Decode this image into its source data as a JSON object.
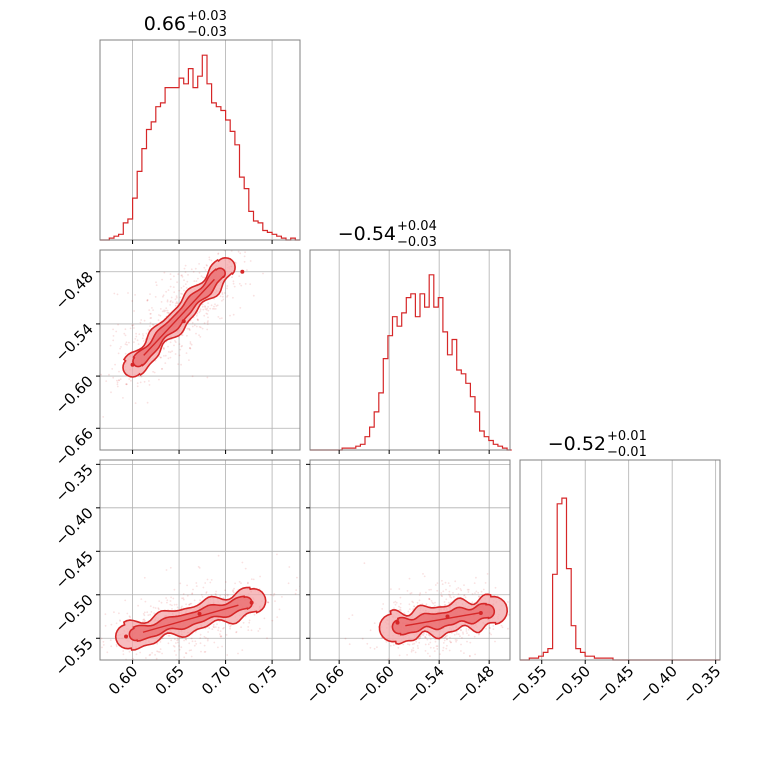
{
  "colors": {
    "series": "#d62728",
    "fill": "#f4a6a8",
    "grid": "#b0b0b0",
    "frame": "#808080"
  },
  "chart_data": [
    {
      "type": "histogram",
      "panel": "p00",
      "title": {
        "main": "0.66",
        "sup": "+0.03",
        "sub": "−0.03"
      },
      "xlim": [
        0.565,
        0.78
      ],
      "ylim": [
        0,
        1.05
      ],
      "x_gridlines": [
        0.6,
        0.65,
        0.7,
        0.75
      ],
      "bins": {
        "x0": 0.565,
        "dx": 0.005,
        "values": [
          0.0,
          0.0,
          0.01,
          0.02,
          0.03,
          0.09,
          0.11,
          0.22,
          0.36,
          0.48,
          0.58,
          0.62,
          0.7,
          0.72,
          0.8,
          0.8,
          0.8,
          0.85,
          0.82,
          0.9,
          0.8,
          0.86,
          0.97,
          0.82,
          0.72,
          0.7,
          0.68,
          0.63,
          0.57,
          0.5,
          0.33,
          0.27,
          0.15,
          0.1,
          0.09,
          0.05,
          0.04,
          0.03,
          0.02,
          0.01,
          0.0,
          0.01,
          0.0
        ]
      }
    },
    {
      "type": "scatter",
      "panel": "p10",
      "xlim": [
        0.565,
        0.78
      ],
      "ylim": [
        -0.685,
        -0.455
      ],
      "x_gridlines": [
        0.6,
        0.65,
        0.7,
        0.75
      ],
      "yticks": [
        -0.48,
        -0.54,
        -0.6,
        -0.66
      ],
      "ytick_labels": [
        "−0.48",
        "−0.54",
        "−0.60",
        "−0.66"
      ],
      "density": {
        "axis": [
          [
            0.6,
            -0.59
          ],
          [
            0.7,
            -0.475
          ]
        ],
        "width_outer": 0.011,
        "width_inner": 0.006,
        "scatter_n": 700
      },
      "markers": [
        [
          0.6,
          -0.587
        ],
        [
          0.718,
          -0.48
        ],
        [
          0.655,
          -0.537
        ]
      ]
    },
    {
      "type": "histogram",
      "panel": "p11",
      "title": {
        "main": "−0.54",
        "sup": "+0.04",
        "sub": "−0.03"
      },
      "xlim": [
        -0.695,
        -0.455
      ],
      "ylim": [
        0,
        1.05
      ],
      "x_gridlines": [
        -0.66,
        -0.6,
        -0.54,
        -0.48
      ],
      "bins": {
        "x0": -0.695,
        "dx": 0.0055,
        "values": [
          0.0,
          0.0,
          0.0,
          0.0,
          0.0,
          0.0,
          0.0,
          0.01,
          0.01,
          0.01,
          0.02,
          0.03,
          0.07,
          0.12,
          0.2,
          0.3,
          0.48,
          0.6,
          0.7,
          0.65,
          0.72,
          0.8,
          0.82,
          0.7,
          0.82,
          0.75,
          0.92,
          0.75,
          0.8,
          0.62,
          0.5,
          0.58,
          0.42,
          0.4,
          0.35,
          0.28,
          0.2,
          0.1,
          0.07,
          0.05,
          0.03,
          0.02,
          0.01,
          0.0
        ]
      }
    },
    {
      "type": "scatter",
      "panel": "p20",
      "xlim": [
        0.565,
        0.78
      ],
      "ylim": [
        -0.575,
        -0.345
      ],
      "x_gridlines": [
        0.6,
        0.65,
        0.7,
        0.75
      ],
      "xticks": [
        0.6,
        0.65,
        0.7,
        0.75
      ],
      "xtick_labels": [
        "0.60",
        "0.65",
        "0.70",
        "0.75"
      ],
      "yticks": [
        -0.35,
        -0.4,
        -0.45,
        -0.5,
        -0.55
      ],
      "ytick_labels": [
        "−0.35",
        "−0.40",
        "−0.45",
        "−0.50",
        "−0.55"
      ],
      "density": {
        "axis": [
          [
            0.595,
            -0.548
          ],
          [
            0.73,
            -0.507
          ]
        ],
        "width_outer": 0.014,
        "width_inner": 0.007,
        "scatter_n": 700
      },
      "markers": [
        [
          0.593,
          -0.548
        ],
        [
          0.728,
          -0.509
        ],
        [
          0.672,
          -0.522
        ]
      ]
    },
    {
      "type": "scatter",
      "panel": "p21",
      "xlim": [
        -0.695,
        -0.455
      ],
      "ylim": [
        -0.575,
        -0.345
      ],
      "x_gridlines": [
        -0.66,
        -0.6,
        -0.54,
        -0.48
      ],
      "xticks": [
        -0.66,
        -0.6,
        -0.54,
        -0.48
      ],
      "xtick_labels": [
        "−0.66",
        "−0.60",
        "−0.54",
        "−0.48"
      ],
      "density": {
        "axis": [
          [
            -0.595,
            -0.538
          ],
          [
            -0.475,
            -0.518
          ]
        ],
        "width_outer": 0.016,
        "width_inner": 0.008,
        "scatter_n": 700
      },
      "markers": [
        [
          -0.59,
          -0.532
        ],
        [
          -0.49,
          -0.521
        ],
        [
          -0.53,
          -0.525
        ]
      ]
    },
    {
      "type": "histogram",
      "panel": "p22",
      "title": {
        "main": "−0.52",
        "sup": "+0.01",
        "sub": "−0.01"
      },
      "xlim": [
        -0.575,
        -0.345
      ],
      "ylim": [
        0,
        1.05
      ],
      "x_gridlines": [
        -0.55,
        -0.5,
        -0.45,
        -0.4,
        -0.35
      ],
      "xticks": [
        -0.55,
        -0.5,
        -0.45,
        -0.4,
        -0.35
      ],
      "xtick_labels": [
        "−0.55",
        "−0.50",
        "−0.45",
        "−0.40",
        "−0.35"
      ],
      "bins": {
        "x0": -0.575,
        "dx": 0.00535,
        "values": [
          0.0,
          0.0,
          0.01,
          0.01,
          0.02,
          0.04,
          0.06,
          0.45,
          0.82,
          0.85,
          0.48,
          0.18,
          0.06,
          0.04,
          0.02,
          0.02,
          0.01,
          0.01,
          0.01,
          0.01,
          0.0,
          0.0,
          0.0,
          0.0,
          0.0,
          0.0,
          0.0,
          0.0,
          0.0,
          0.0,
          0.0,
          0.0,
          0.0,
          0.0,
          0.0,
          0.0,
          0.0,
          0.0,
          0.0,
          0.0,
          0.0,
          0.0,
          0.0
        ]
      }
    }
  ]
}
